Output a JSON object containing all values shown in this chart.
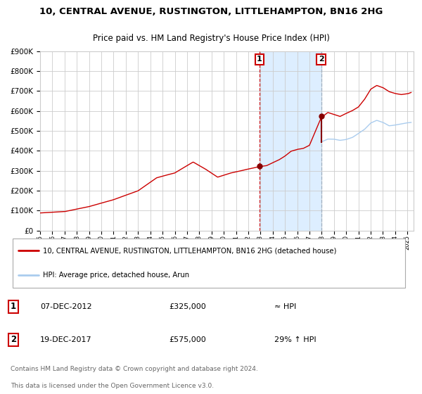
{
  "title_line1": "10, CENTRAL AVENUE, RUSTINGTON, LITTLEHAMPTON, BN16 2HG",
  "title_line2": "Price paid vs. HM Land Registry's House Price Index (HPI)",
  "background_color": "#ffffff",
  "plot_bg_color": "#ffffff",
  "grid_color": "#cccccc",
  "red_line_color": "#cc0000",
  "blue_line_color": "#aaccee",
  "shaded_region_color": "#ddeeff",
  "dashed_red_color": "#cc0000",
  "dashed_blue_color": "#99aabb",
  "marker_color": "#880000",
  "sale1_year": 2012.92,
  "sale1_price": 325000,
  "sale2_year": 2017.96,
  "sale2_price": 575000,
  "sale2_hpi_price": 445000,
  "legend_line1": "10, CENTRAL AVENUE, RUSTINGTON, LITTLEHAMPTON, BN16 2HG (detached house)",
  "legend_line2": "HPI: Average price, detached house, Arun",
  "ylim": [
    0,
    900000
  ],
  "xlim_start": 1995,
  "xlim_end": 2025.5
}
